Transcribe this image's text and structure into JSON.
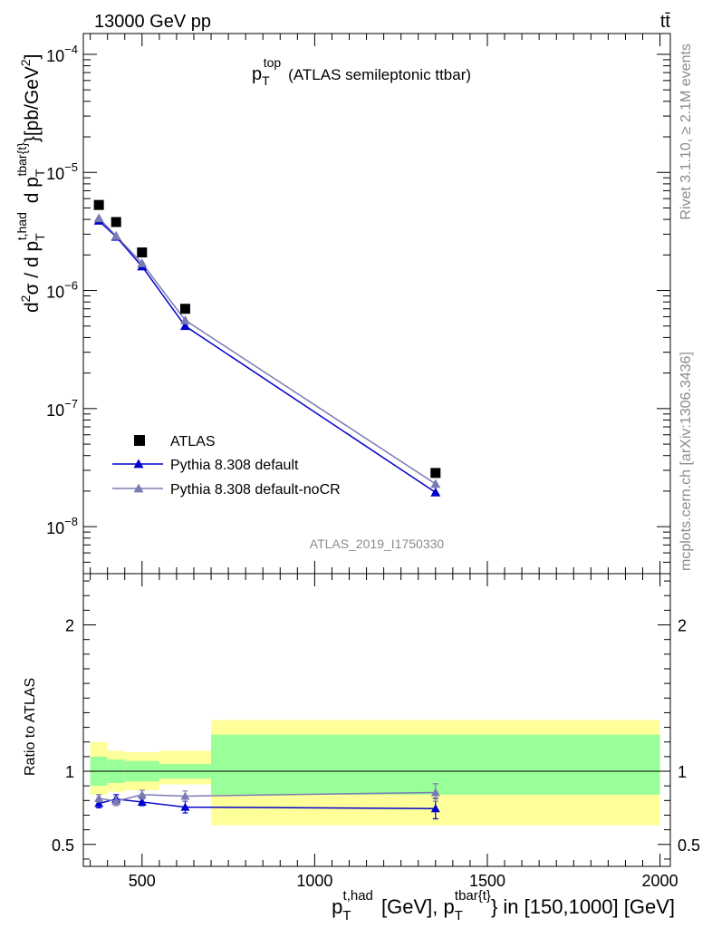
{
  "header": {
    "energy_label": "13000 GeV pp",
    "process_label": "tt̄"
  },
  "side_labels": {
    "rivet": "Rivet 3.1.10, ≥ 2.1M events",
    "mcplots": "mcplots.cern.ch [arXiv:1306.3436]"
  },
  "chart_data": [
    {
      "type": "scatter",
      "title": {
        "main": "p",
        "sub": "T",
        "sup": "top",
        "rest": "(ATLAS semileptonic ttbar)"
      },
      "analysis_label": "ATLAS_2019_I1750330",
      "ylabel": "d²σ / d p_T^{t,had} d p_T^{tbar{t}} [pb/GeV²]",
      "yscale": "log",
      "ylim": [
        4e-09,
        0.00015
      ],
      "xlim": [
        330,
        2030
      ],
      "y_tick_labels": [
        {
          "base": "10",
          "exp": "−8",
          "value": 1e-08
        },
        {
          "base": "10",
          "exp": "−7",
          "value": 1e-07
        },
        {
          "base": "10",
          "exp": "−6",
          "value": 1e-06
        },
        {
          "base": "10",
          "exp": "−5",
          "value": 1e-05
        },
        {
          "base": "10",
          "exp": "−4",
          "value": 0.0001
        }
      ],
      "legend_position": "lower-left",
      "series": [
        {
          "name": "ATLAS",
          "color": "#000000",
          "marker": "square",
          "x": [
            375,
            425,
            500,
            625,
            1350
          ],
          "y": [
            5.3e-06,
            3.8e-06,
            2.1e-06,
            7e-07,
            2.85e-08
          ]
        },
        {
          "name": "Pythia 8.308 default",
          "color": "#0000cc",
          "marker": "triangle",
          "x": [
            375,
            425,
            500,
            625,
            1350
          ],
          "y": [
            3.9e-06,
            2.85e-06,
            1.6e-06,
            5e-07,
            1.95e-08
          ]
        },
        {
          "name": "Pythia 8.308 default-noCR",
          "color": "#7b7bb4",
          "marker": "triangle",
          "x": [
            375,
            425,
            500,
            625,
            1350
          ],
          "y": [
            4.1e-06,
            2.9e-06,
            1.7e-06,
            5.6e-07,
            2.3e-08
          ]
        }
      ]
    },
    {
      "type": "scatter",
      "ylabel": "Ratio to ATLAS",
      "xlabel": "p_T^{t,had} [GeV], p_T^{tbar{t}} in [150,1000] [GeV]",
      "ylim": [
        0.35,
        2.35
      ],
      "xlim": [
        330,
        2030
      ],
      "x_tick_labels": [
        "500",
        "1000",
        "1500",
        "2000"
      ],
      "x_ticks": [
        500,
        1000,
        1500,
        2000
      ],
      "y_tick_labels": [
        "0.5",
        "1",
        "2"
      ],
      "y_ticks": [
        0.5,
        1,
        2
      ],
      "bands": [
        {
          "x": [
            350,
            400
          ],
          "yellow": [
            0.84,
            1.2
          ],
          "green": [
            0.9,
            1.1
          ]
        },
        {
          "x": [
            400,
            450
          ],
          "yellow": [
            0.86,
            1.14
          ],
          "green": [
            0.92,
            1.08
          ]
        },
        {
          "x": [
            450,
            550
          ],
          "yellow": [
            0.87,
            1.13
          ],
          "green": [
            0.93,
            1.07
          ]
        },
        {
          "x": [
            550,
            700
          ],
          "yellow": [
            0.91,
            1.14
          ],
          "green": [
            0.95,
            1.05
          ]
        },
        {
          "x": [
            700,
            2000
          ],
          "yellow": [
            0.63,
            1.35
          ],
          "green": [
            0.84,
            1.25
          ]
        }
      ],
      "series": [
        {
          "name": "Pythia 8.308 default",
          "color": "#0000cc",
          "x": [
            375,
            425,
            500,
            625,
            1350
          ],
          "y": [
            0.78,
            0.81,
            0.79,
            0.755,
            0.745
          ],
          "err": [
            0.03,
            0.03,
            0.025,
            0.04,
            0.07
          ]
        },
        {
          "name": "Pythia 8.308 default-noCR",
          "color": "#7b7bb4",
          "x": [
            375,
            425,
            500,
            625,
            1350
          ],
          "y": [
            0.815,
            0.795,
            0.84,
            0.83,
            0.855
          ],
          "err": [
            0.025,
            0.03,
            0.03,
            0.035,
            0.06
          ]
        }
      ]
    }
  ]
}
